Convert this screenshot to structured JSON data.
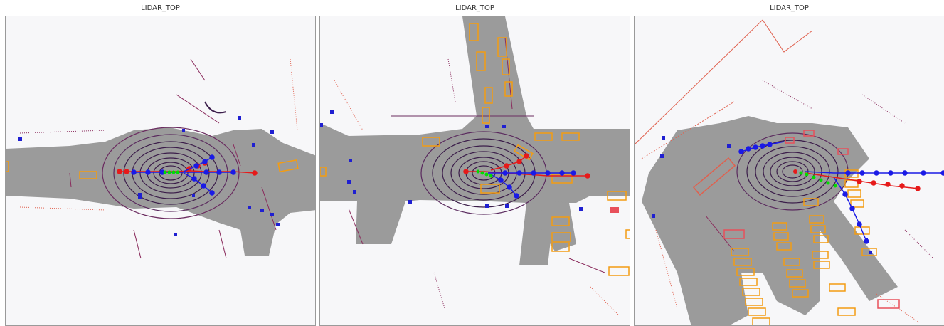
{
  "panels": [
    {
      "title": "LIDAR_TOP"
    },
    {
      "title": "LIDAR_TOP"
    },
    {
      "title": "LIDAR_TOP"
    }
  ],
  "colors": {
    "background": "#f7f7f9",
    "drivable_area": "#9b9b9b",
    "lidar_dark": "#3b1d4a",
    "lidar_mid": "#8a2a5c",
    "lidar_light": "#e0604e",
    "box_vehicle": "#f39c12",
    "box_pedestrian": "#1f1fd1",
    "box_other": "#e8505b",
    "ego_past": "#00dd00",
    "pred_blue": "#1a1ae6",
    "pred_red": "#e61a1a"
  }
}
